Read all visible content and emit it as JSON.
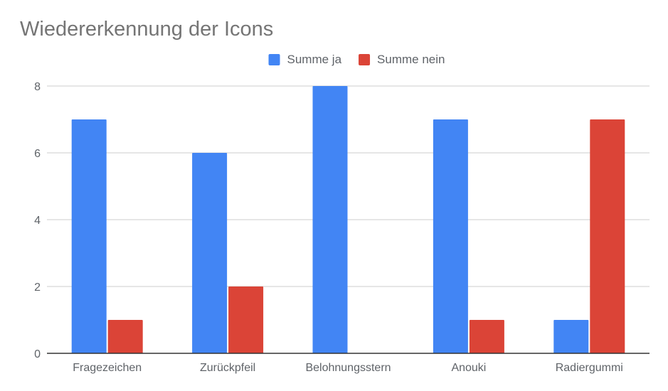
{
  "chart_data": {
    "type": "bar",
    "title": "Wiedererkennung der Icons",
    "xlabel": "",
    "ylabel": "",
    "categories": [
      "Fragezeichen",
      "Zurückpfeil",
      "Belohnungsstern",
      "Anouki",
      "Radiergummi"
    ],
    "series": [
      {
        "name": "Summe ja",
        "color": "#4285f4",
        "values": [
          7,
          6,
          8,
          7,
          1
        ]
      },
      {
        "name": "Summe nein",
        "color": "#db4437",
        "values": [
          1,
          2,
          0,
          1,
          7
        ]
      }
    ],
    "ylim": [
      0,
      8
    ],
    "yticks": [
      0,
      2,
      4,
      6,
      8
    ],
    "grid": true,
    "legend_position": "top-center"
  }
}
